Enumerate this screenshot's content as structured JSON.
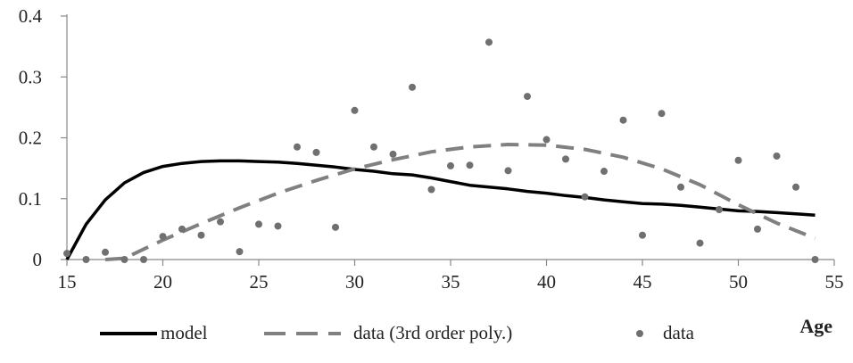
{
  "chart_data": {
    "type": "line",
    "title": "",
    "xlabel": "Age",
    "ylabel": "",
    "xlim": [
      15,
      55
    ],
    "ylim": [
      0,
      0.4
    ],
    "x_ticks": [
      15,
      20,
      25,
      30,
      35,
      40,
      45,
      50,
      55
    ],
    "y_ticks": [
      0,
      0.1,
      0.2,
      0.3,
      0.4
    ],
    "x_tick_labels": [
      "15",
      "20",
      "25",
      "30",
      "35",
      "40",
      "45",
      "50",
      "55"
    ],
    "y_tick_labels": [
      "0",
      "0.1",
      "0.2",
      "0.3",
      "0.4"
    ],
    "grid": false,
    "legend_position": "bottom",
    "series": [
      {
        "name": "model",
        "style": "solid-line",
        "color": "#000000",
        "x": [
          15,
          16,
          17,
          18,
          19,
          20,
          21,
          22,
          23,
          24,
          25,
          26,
          27,
          28,
          29,
          30,
          31,
          32,
          33,
          34,
          35,
          36,
          37,
          38,
          39,
          40,
          41,
          42,
          43,
          44,
          45,
          46,
          47,
          48,
          49,
          50,
          51,
          52,
          53,
          54
        ],
        "y": [
          0.0,
          0.058,
          0.098,
          0.126,
          0.143,
          0.153,
          0.158,
          0.161,
          0.162,
          0.162,
          0.161,
          0.16,
          0.158,
          0.155,
          0.152,
          0.148,
          0.145,
          0.141,
          0.139,
          0.134,
          0.128,
          0.122,
          0.119,
          0.116,
          0.112,
          0.109,
          0.105,
          0.102,
          0.098,
          0.095,
          0.092,
          0.091,
          0.089,
          0.086,
          0.083,
          0.08,
          0.079,
          0.077,
          0.075,
          0.073
        ]
      },
      {
        "name": "data (3rd order poly.)",
        "style": "dashed-line",
        "color": "#808080",
        "x": [
          17,
          18,
          20,
          22,
          24,
          26,
          28,
          30,
          32,
          34,
          36,
          38,
          40,
          42,
          44,
          46,
          48,
          50,
          52,
          54
        ],
        "y": [
          0.0,
          0.002,
          0.032,
          0.059,
          0.085,
          0.109,
          0.13,
          0.149,
          0.164,
          0.177,
          0.185,
          0.189,
          0.188,
          0.181,
          0.168,
          0.149,
          0.123,
          0.09,
          0.06,
          0.035
        ]
      },
      {
        "name": "data",
        "style": "markers",
        "color": "#707070",
        "x": [
          15,
          16,
          17,
          18,
          19,
          20,
          21,
          22,
          23,
          24,
          25,
          26,
          27,
          28,
          29,
          30,
          31,
          32,
          33,
          34,
          35,
          36,
          37,
          38,
          39,
          40,
          41,
          42,
          43,
          44,
          45,
          46,
          47,
          48,
          49,
          50,
          51,
          52,
          53,
          54
        ],
        "y": [
          0.01,
          0.0,
          0.012,
          0.0,
          0.0,
          0.038,
          0.05,
          0.04,
          0.062,
          0.013,
          0.058,
          0.055,
          0.185,
          0.176,
          0.053,
          0.245,
          0.185,
          0.173,
          0.283,
          0.115,
          0.154,
          0.155,
          0.357,
          0.146,
          0.268,
          0.197,
          0.165,
          0.103,
          0.145,
          0.229,
          0.04,
          0.24,
          0.119,
          0.027,
          0.082,
          0.163,
          0.05,
          0.17,
          0.119,
          0.0
        ]
      }
    ]
  }
}
